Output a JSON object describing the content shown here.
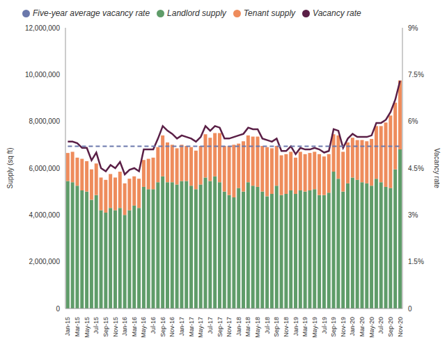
{
  "chart_data": {
    "type": "bar",
    "stacked": true,
    "legend": "top",
    "grid": false,
    "y_label": "Supply (sq ft)",
    "y2_label": "Vacancy rate",
    "ylim": [
      0,
      12000000
    ],
    "yticks": [
      0,
      {
        "value": 2000000,
        "label": "2,000,000"
      },
      {
        "value": 4000000,
        "label": "4,000,000"
      },
      {
        "value": 6000000,
        "label": "6,000,000"
      },
      {
        "value": 8000000,
        "label": "8,000,000"
      },
      {
        "value": 10000000,
        "label": "10,000,000"
      },
      {
        "value": 12000000,
        "label": "12,000,000"
      }
    ],
    "y2lim": [
      0,
      9
    ],
    "y2ticks": [
      0,
      {
        "value": 1.5,
        "label": "1.5%"
      },
      {
        "value": 3,
        "label": "3%"
      },
      {
        "value": 4.5,
        "label": "4.5%"
      },
      {
        "value": 6,
        "label": "6%"
      },
      {
        "value": 7.5,
        "label": "7.5%"
      },
      {
        "value": 9,
        "label": "9%"
      }
    ],
    "categories": [
      "Jan-15",
      null,
      "Mar-15",
      null,
      "May-15",
      null,
      "Jul-15",
      null,
      "Sep-15",
      null,
      "Nov-15",
      null,
      "Jan-16",
      null,
      "Mar-16",
      null,
      "May-16",
      null,
      "Jul-16",
      null,
      "Sep-16",
      null,
      "Nov-16",
      null,
      "Jan-17",
      null,
      "Mar-17",
      null,
      "May-17",
      null,
      "Jul-17",
      null,
      "Sep-17",
      null,
      "Nov-17",
      null,
      "Jan-18",
      null,
      "Mar-18",
      null,
      "May-18",
      null,
      "Jul-18",
      null,
      "Sep-18",
      null,
      "Nov-18",
      null,
      "Jan-19",
      null,
      "Mar-19",
      null,
      "May-19",
      null,
      "Jul-19",
      null,
      "Sep-19",
      null,
      "Nov-19",
      null,
      "Jan-20",
      null,
      "Mar-20",
      null,
      "May-20",
      null,
      "Jul-20",
      null,
      "Sep-20",
      null,
      "Nov-20"
    ],
    "series": [
      {
        "name": "Landlord supply",
        "type": "bar",
        "color": "#5f9c69",
        "values": [
          5450000,
          5400000,
          5250000,
          5050000,
          5000000,
          4650000,
          4850000,
          4200000,
          4100000,
          4300000,
          4200000,
          4300000,
          4000000,
          4200000,
          4400000,
          4300000,
          5200000,
          5100000,
          5100000,
          5400000,
          5650000,
          5400000,
          5400000,
          5300000,
          5450000,
          5450000,
          5250000,
          5100000,
          5300000,
          5600000,
          5450000,
          5650000,
          5400000,
          5000000,
          4850000,
          4750000,
          5150000,
          5000000,
          5400000,
          5250000,
          5200000,
          5000000,
          4800000,
          4900000,
          5250000,
          4850000,
          4900000,
          5050000,
          4900000,
          5050000,
          5000000,
          5050000,
          5100000,
          4850000,
          4850000,
          4950000,
          5850000,
          5550000,
          5000000,
          5350000,
          5600000,
          5500000,
          5400000,
          5350000,
          5250000,
          5550000,
          5400000,
          5200000,
          5150000,
          5950000,
          6800000
        ]
      },
      {
        "name": "Tenant supply",
        "type": "bar",
        "color": "#ee8c5c",
        "values": [
          1200000,
          1300000,
          1200000,
          1350000,
          1300000,
          1300000,
          1350000,
          1400000,
          1400000,
          1450000,
          1400000,
          1550000,
          1350000,
          1350000,
          1250000,
          1250000,
          1150000,
          1300000,
          1350000,
          1500000,
          1750000,
          1700000,
          1600000,
          1550000,
          1550000,
          1500000,
          1650000,
          1650000,
          1650000,
          1850000,
          1850000,
          1850000,
          2100000,
          1950000,
          2100000,
          2250000,
          1900000,
          2150000,
          2000000,
          2100000,
          2150000,
          1950000,
          2100000,
          1950000,
          1700000,
          1700000,
          1700000,
          1650000,
          1550000,
          1650000,
          1600000,
          1600000,
          1600000,
          1750000,
          1650000,
          1650000,
          1600000,
          1850000,
          1700000,
          1750000,
          1700000,
          1700000,
          1800000,
          1800000,
          2000000,
          2250000,
          2400000,
          2750000,
          3100000,
          2850000,
          2950000
        ]
      },
      {
        "name": "Vacancy rate",
        "type": "line",
        "axis": "y2",
        "color": "#5a1f46",
        "marker": "none",
        "line_style": "solid",
        "values": [
          5.35,
          5.35,
          5.3,
          5.15,
          5.15,
          4.75,
          5.0,
          4.5,
          4.4,
          4.6,
          4.5,
          4.7,
          4.3,
          4.45,
          4.5,
          4.4,
          5.1,
          5.1,
          5.1,
          5.45,
          5.85,
          5.7,
          5.6,
          5.45,
          5.55,
          5.5,
          5.45,
          5.35,
          5.5,
          5.85,
          5.7,
          5.85,
          5.8,
          5.45,
          5.45,
          5.5,
          5.55,
          5.6,
          5.8,
          5.75,
          5.75,
          5.45,
          5.4,
          5.35,
          5.45,
          5.05,
          5.05,
          5.2,
          4.95,
          5.15,
          5.1,
          5.1,
          5.15,
          5.1,
          5.0,
          5.05,
          5.75,
          5.7,
          5.15,
          5.45,
          5.6,
          5.5,
          5.5,
          5.5,
          5.55,
          5.95,
          5.95,
          6.05,
          6.3,
          6.7,
          7.3
        ]
      },
      {
        "name": "Five-year average vacancy rate",
        "type": "line",
        "axis": "y2",
        "color": "#6b78ab",
        "marker": "none",
        "line_style": "dashed",
        "values": [
          5.2,
          5.2,
          5.2,
          5.2,
          5.2,
          5.2,
          5.2,
          5.2,
          5.2,
          5.2,
          5.2,
          5.2,
          5.2,
          5.2,
          5.2,
          5.2,
          5.2,
          5.2,
          5.2,
          5.2,
          5.2,
          5.2,
          5.2,
          5.2,
          5.2,
          5.2,
          5.2,
          5.2,
          5.2,
          5.2,
          5.2,
          5.2,
          5.2,
          5.2,
          5.2,
          5.2,
          5.2,
          5.2,
          5.2,
          5.2,
          5.2,
          5.2,
          5.2,
          5.2,
          5.2,
          5.2,
          5.2,
          5.2,
          5.2,
          5.2,
          5.2,
          5.2,
          5.2,
          5.2,
          5.2,
          5.2,
          5.2,
          5.2,
          5.2,
          5.2,
          5.2,
          5.2,
          5.2,
          5.2,
          5.2,
          5.2,
          5.2,
          5.2,
          5.2,
          5.2,
          5.2
        ]
      }
    ]
  }
}
